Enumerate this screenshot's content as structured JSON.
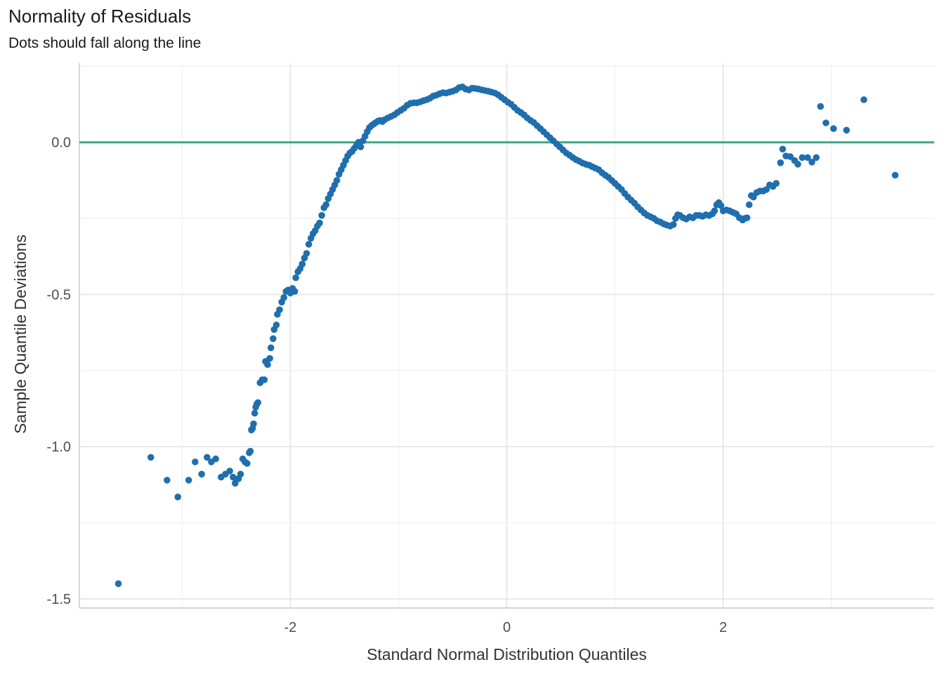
{
  "chart_data": {
    "type": "scatter",
    "title": "Normality of Residuals",
    "subtitle": "Dots should fall along the line",
    "xlabel": "Standard Normal Distribution Quantiles",
    "ylabel": "Sample Quantile Deviations",
    "xlim": [
      -3.95,
      3.95
    ],
    "ylim": [
      -1.53,
      0.26
    ],
    "x_ticks": [
      -2,
      0,
      2
    ],
    "x_tick_labels": [
      "-2",
      "0",
      "2"
    ],
    "y_ticks": [
      -1.5,
      -1.0,
      -0.5,
      0.0
    ],
    "y_tick_labels": [
      "-1.5",
      "-1.0",
      "-0.5",
      "0.0"
    ],
    "grid": true,
    "reference_line": {
      "y": 0,
      "color": "#3aaa85"
    },
    "point_color": "#1f6fae",
    "series": [
      {
        "points": [
          [
            -3.59,
            -1.45
          ],
          [
            -3.29,
            -1.035
          ],
          [
            -3.14,
            -1.11
          ],
          [
            -3.04,
            -1.165
          ],
          [
            -2.94,
            -1.11
          ],
          [
            -2.88,
            -1.05
          ],
          [
            -2.82,
            -1.09
          ],
          [
            -2.77,
            -1.035
          ],
          [
            -2.73,
            -1.05
          ],
          [
            -2.69,
            -1.04
          ],
          [
            -2.64,
            -1.1
          ],
          [
            -2.6,
            -1.09
          ],
          [
            -2.56,
            -1.08
          ],
          [
            -2.53,
            -1.1
          ],
          [
            -2.51,
            -1.12
          ],
          [
            -2.48,
            -1.105
          ],
          [
            -2.46,
            -1.09
          ],
          [
            -2.44,
            -1.04
          ],
          [
            -2.42,
            -1.05
          ],
          [
            -2.4,
            -1.055
          ],
          [
            -2.38,
            -1.02
          ],
          [
            -2.37,
            -1.015
          ],
          [
            -2.36,
            -0.945
          ],
          [
            -2.35,
            -0.94
          ],
          [
            -2.34,
            -0.925
          ],
          [
            -2.33,
            -0.89
          ],
          [
            -2.32,
            -0.87
          ],
          [
            -2.31,
            -0.86
          ],
          [
            -2.3,
            -0.855
          ],
          [
            -2.28,
            -0.79
          ],
          [
            -2.26,
            -0.78
          ],
          [
            -2.24,
            -0.78
          ],
          [
            -2.23,
            -0.72
          ],
          [
            -2.21,
            -0.73
          ],
          [
            -2.19,
            -0.71
          ],
          [
            -2.18,
            -0.675
          ],
          [
            -2.16,
            -0.645
          ],
          [
            -2.15,
            -0.615
          ],
          [
            -2.13,
            -0.6
          ],
          [
            -2.12,
            -0.565
          ],
          [
            -2.1,
            -0.55
          ],
          [
            -2.08,
            -0.525
          ],
          [
            -2.06,
            -0.51
          ],
          [
            -2.04,
            -0.49
          ],
          [
            -2.02,
            -0.485
          ],
          [
            -2.0,
            -0.495
          ],
          [
            -1.98,
            -0.48
          ],
          [
            -1.96,
            -0.49
          ],
          [
            -1.95,
            -0.445
          ],
          [
            -1.93,
            -0.425
          ],
          [
            -1.91,
            -0.415
          ],
          [
            -1.89,
            -0.4
          ],
          [
            -1.87,
            -0.38
          ],
          [
            -1.85,
            -0.365
          ],
          [
            -1.83,
            -0.335
          ],
          [
            -1.81,
            -0.315
          ],
          [
            -1.79,
            -0.3
          ],
          [
            -1.77,
            -0.29
          ],
          [
            -1.75,
            -0.275
          ],
          [
            -1.73,
            -0.265
          ],
          [
            -1.71,
            -0.24
          ],
          [
            -1.69,
            -0.215
          ],
          [
            -1.67,
            -0.205
          ],
          [
            -1.65,
            -0.185
          ],
          [
            -1.63,
            -0.17
          ],
          [
            -1.61,
            -0.155
          ],
          [
            -1.59,
            -0.14
          ],
          [
            -1.57,
            -0.125
          ],
          [
            -1.55,
            -0.105
          ],
          [
            -1.53,
            -0.09
          ],
          [
            -1.51,
            -0.075
          ],
          [
            -1.49,
            -0.06
          ],
          [
            -1.47,
            -0.045
          ],
          [
            -1.45,
            -0.035
          ],
          [
            -1.43,
            -0.03
          ],
          [
            -1.41,
            -0.02
          ],
          [
            -1.39,
            -0.01
          ],
          [
            -1.37,
            0.0
          ],
          [
            -1.35,
            -0.015
          ],
          [
            -1.33,
            0.005
          ],
          [
            -1.31,
            0.02
          ],
          [
            -1.29,
            0.035
          ],
          [
            -1.27,
            0.048
          ],
          [
            -1.25,
            0.055
          ],
          [
            -1.23,
            0.06
          ],
          [
            -1.21,
            0.065
          ],
          [
            -1.19,
            0.07
          ],
          [
            -1.17,
            0.072
          ],
          [
            -1.15,
            0.068
          ],
          [
            -1.13,
            0.074
          ],
          [
            -1.1,
            0.08
          ],
          [
            -1.07,
            0.085
          ],
          [
            -1.04,
            0.09
          ],
          [
            -1.01,
            0.098
          ],
          [
            -0.98,
            0.105
          ],
          [
            -0.95,
            0.112
          ],
          [
            -0.92,
            0.122
          ],
          [
            -0.89,
            0.128
          ],
          [
            -0.86,
            0.13
          ],
          [
            -0.83,
            0.13
          ],
          [
            -0.8,
            0.133
          ],
          [
            -0.77,
            0.137
          ],
          [
            -0.74,
            0.14
          ],
          [
            -0.71,
            0.145
          ],
          [
            -0.68,
            0.152
          ],
          [
            -0.65,
            0.155
          ],
          [
            -0.62,
            0.16
          ],
          [
            -0.59,
            0.163
          ],
          [
            -0.56,
            0.162
          ],
          [
            -0.53,
            0.165
          ],
          [
            -0.5,
            0.168
          ],
          [
            -0.47,
            0.172
          ],
          [
            -0.44,
            0.18
          ],
          [
            -0.41,
            0.182
          ],
          [
            -0.38,
            0.175
          ],
          [
            -0.35,
            0.172
          ],
          [
            -0.32,
            0.178
          ],
          [
            -0.29,
            0.177
          ],
          [
            -0.26,
            0.175
          ],
          [
            -0.23,
            0.172
          ],
          [
            -0.2,
            0.17
          ],
          [
            -0.17,
            0.168
          ],
          [
            -0.14,
            0.165
          ],
          [
            -0.11,
            0.162
          ],
          [
            -0.08,
            0.156
          ],
          [
            -0.05,
            0.148
          ],
          [
            -0.02,
            0.14
          ],
          [
            0.01,
            0.132
          ],
          [
            0.04,
            0.125
          ],
          [
            0.07,
            0.115
          ],
          [
            0.1,
            0.105
          ],
          [
            0.13,
            0.098
          ],
          [
            0.16,
            0.09
          ],
          [
            0.19,
            0.08
          ],
          [
            0.22,
            0.072
          ],
          [
            0.25,
            0.065
          ],
          [
            0.28,
            0.055
          ],
          [
            0.31,
            0.045
          ],
          [
            0.34,
            0.035
          ],
          [
            0.37,
            0.025
          ],
          [
            0.4,
            0.015
          ],
          [
            0.43,
            0.005
          ],
          [
            0.46,
            -0.005
          ],
          [
            0.49,
            -0.015
          ],
          [
            0.52,
            -0.025
          ],
          [
            0.55,
            -0.035
          ],
          [
            0.58,
            -0.042
          ],
          [
            0.61,
            -0.05
          ],
          [
            0.64,
            -0.057
          ],
          [
            0.67,
            -0.062
          ],
          [
            0.7,
            -0.068
          ],
          [
            0.73,
            -0.072
          ],
          [
            0.76,
            -0.075
          ],
          [
            0.79,
            -0.08
          ],
          [
            0.82,
            -0.085
          ],
          [
            0.85,
            -0.09
          ],
          [
            0.88,
            -0.1
          ],
          [
            0.91,
            -0.108
          ],
          [
            0.94,
            -0.115
          ],
          [
            0.97,
            -0.125
          ],
          [
            1.0,
            -0.135
          ],
          [
            1.03,
            -0.145
          ],
          [
            1.06,
            -0.155
          ],
          [
            1.09,
            -0.168
          ],
          [
            1.12,
            -0.18
          ],
          [
            1.15,
            -0.19
          ],
          [
            1.18,
            -0.2
          ],
          [
            1.21,
            -0.212
          ],
          [
            1.24,
            -0.222
          ],
          [
            1.27,
            -0.232
          ],
          [
            1.3,
            -0.24
          ],
          [
            1.33,
            -0.245
          ],
          [
            1.36,
            -0.25
          ],
          [
            1.39,
            -0.258
          ],
          [
            1.42,
            -0.262
          ],
          [
            1.45,
            -0.268
          ],
          [
            1.48,
            -0.272
          ],
          [
            1.51,
            -0.275
          ],
          [
            1.54,
            -0.27
          ],
          [
            1.56,
            -0.25
          ],
          [
            1.58,
            -0.238
          ],
          [
            1.6,
            -0.24
          ],
          [
            1.63,
            -0.248
          ],
          [
            1.66,
            -0.252
          ],
          [
            1.69,
            -0.245
          ],
          [
            1.72,
            -0.248
          ],
          [
            1.75,
            -0.24
          ],
          [
            1.78,
            -0.24
          ],
          [
            1.81,
            -0.243
          ],
          [
            1.84,
            -0.238
          ],
          [
            1.87,
            -0.24
          ],
          [
            1.9,
            -0.235
          ],
          [
            1.92,
            -0.225
          ],
          [
            1.94,
            -0.205
          ],
          [
            1.96,
            -0.198
          ],
          [
            1.98,
            -0.208
          ],
          [
            2.0,
            -0.225
          ],
          [
            2.03,
            -0.222
          ],
          [
            2.06,
            -0.225
          ],
          [
            2.09,
            -0.23
          ],
          [
            2.12,
            -0.235
          ],
          [
            2.15,
            -0.248
          ],
          [
            2.18,
            -0.255
          ],
          [
            2.2,
            -0.25
          ],
          [
            2.22,
            -0.248
          ],
          [
            2.24,
            -0.205
          ],
          [
            2.26,
            -0.175
          ],
          [
            2.28,
            -0.18
          ],
          [
            2.31,
            -0.165
          ],
          [
            2.34,
            -0.16
          ],
          [
            2.37,
            -0.16
          ],
          [
            2.4,
            -0.155
          ],
          [
            2.43,
            -0.14
          ],
          [
            2.46,
            -0.145
          ],
          [
            2.49,
            -0.135
          ],
          [
            2.53,
            -0.067
          ],
          [
            2.55,
            -0.022
          ],
          [
            2.58,
            -0.045
          ],
          [
            2.62,
            -0.047
          ],
          [
            2.66,
            -0.06
          ],
          [
            2.69,
            -0.072
          ],
          [
            2.73,
            -0.05
          ],
          [
            2.78,
            -0.05
          ],
          [
            2.82,
            -0.065
          ],
          [
            2.86,
            -0.05
          ],
          [
            2.9,
            0.118
          ],
          [
            2.95,
            0.064
          ],
          [
            3.02,
            0.045
          ],
          [
            3.14,
            0.04
          ],
          [
            3.3,
            0.14
          ],
          [
            3.59,
            -0.108
          ]
        ]
      }
    ]
  }
}
